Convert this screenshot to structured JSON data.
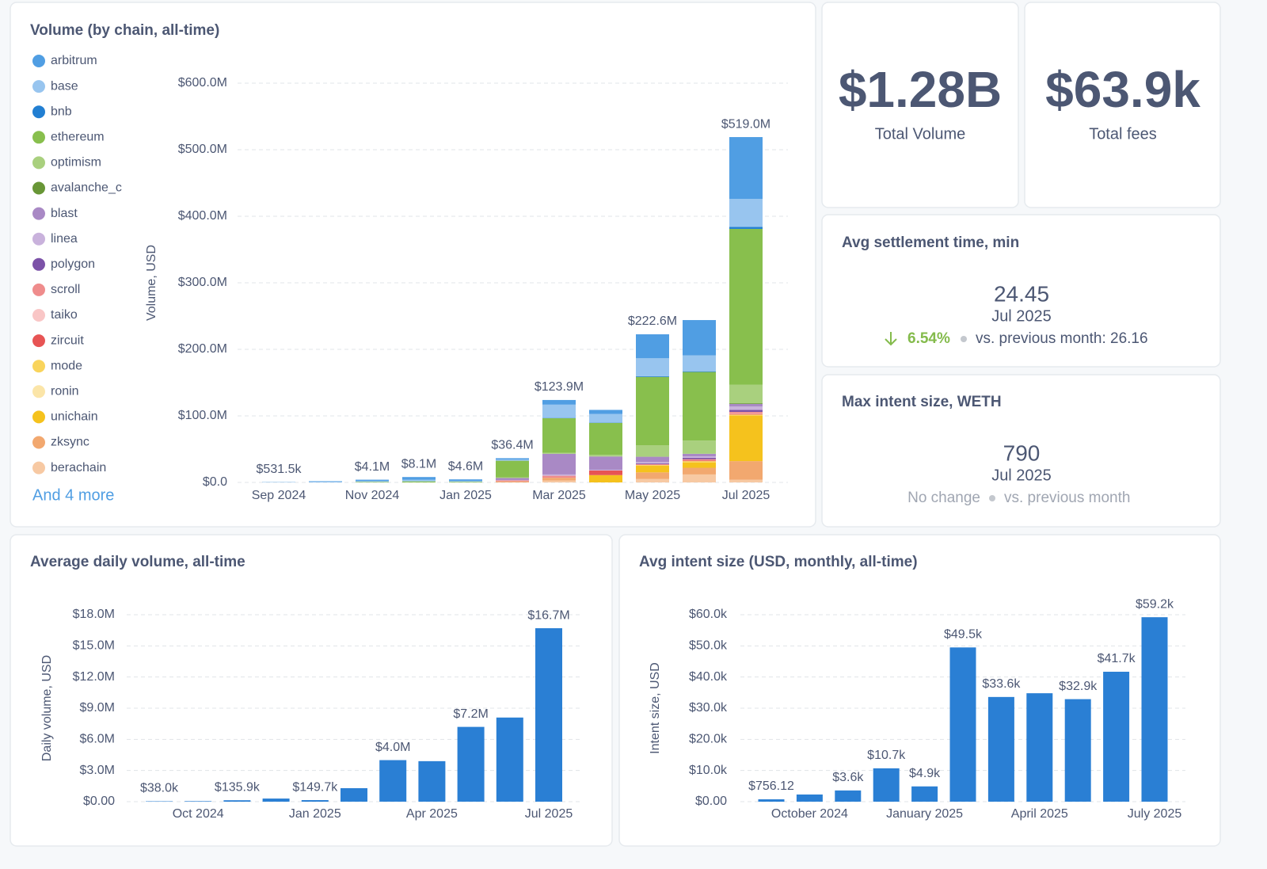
{
  "chart_data": [
    {
      "type": "stacked_bar",
      "title": "Volume (by chain, all-time)",
      "y_label": "Volume, USD",
      "categories": [
        "Sep 2024",
        null,
        "Nov 2024",
        null,
        "Jan 2025",
        null,
        "Mar 2025",
        null,
        "May 2025",
        null,
        "Jul 2025"
      ],
      "series": [
        {
          "name": "arbitrum",
          "color": "#509ee3",
          "values": [
            400000.0,
            1000000.0,
            2000000.0,
            4000000.0,
            2200000.0,
            2000000.0,
            7000000.0,
            6000000.0,
            36000000.0,
            53000000.0,
            93000000.0
          ]
        },
        {
          "name": "base",
          "color": "#98c5ef",
          "values": [
            131500.0,
            800000.0,
            1200000.0,
            2500000.0,
            1400000.0,
            1500000.0,
            20000000.0,
            13000000.0,
            27000000.0,
            24000000.0,
            42000000.0
          ]
        },
        {
          "name": "bnb",
          "color": "#227fd2",
          "values": [
            0,
            0,
            0,
            0,
            0,
            300000.0,
            400000.0,
            500000.0,
            1000000.0,
            1000000.0,
            3000000.0
          ]
        },
        {
          "name": "ethereum",
          "color": "#88bf4d",
          "values": [
            0,
            0,
            900000.0,
            1600000.0,
            1000000.0,
            25000000.0,
            52000000.0,
            48000000.0,
            103000000.0,
            103000000.0,
            234000000.0
          ]
        },
        {
          "name": "optimism",
          "color": "#a9d07e",
          "values": [
            0,
            0,
            0,
            0,
            0,
            1000000.0,
            1500000.0,
            2500000.0,
            17000000.0,
            20000000.0,
            28000000.0
          ]
        },
        {
          "name": "avalanche_c",
          "color": "#689636",
          "values": [
            0,
            0,
            0,
            0,
            0,
            0,
            0,
            0,
            0,
            0,
            1000000.0
          ]
        },
        {
          "name": "blast",
          "color": "#a989c5",
          "values": [
            0,
            0,
            0,
            0,
            0,
            3000000.0,
            31000000.0,
            20000000.0,
            8000000.0,
            4000000.0,
            4000000.0
          ]
        },
        {
          "name": "linea",
          "color": "#c9b2dc",
          "values": [
            0,
            0,
            0,
            0,
            0,
            500000.0,
            2000000.0,
            1000000.0,
            2000000.0,
            2000000.0,
            5000000.0
          ]
        },
        {
          "name": "polygon",
          "color": "#7c52a8",
          "values": [
            0,
            0,
            0,
            0,
            0,
            0,
            0,
            0,
            1000000.0,
            2000000.0,
            3000000.0
          ]
        },
        {
          "name": "scroll",
          "color": "#ef8c8c",
          "values": [
            0,
            0,
            0,
            0,
            0,
            1500000.0,
            3000000.0,
            0,
            1500000.0,
            2000000.0,
            2000000.0
          ]
        },
        {
          "name": "taiko",
          "color": "#f9c6c6",
          "values": [
            0,
            0,
            0,
            0,
            0,
            0,
            0,
            0,
            0,
            0,
            1000000.0
          ]
        },
        {
          "name": "zircuit",
          "color": "#e75454",
          "values": [
            0,
            0,
            0,
            0,
            0,
            0,
            0,
            7000000.0,
            0,
            1000000.0,
            1000000.0
          ]
        },
        {
          "name": "mode",
          "color": "#f9d45c",
          "values": [
            0,
            0,
            0,
            0,
            0,
            0,
            0,
            0,
            1000000.0,
            2000000.0,
            2000000.0
          ]
        },
        {
          "name": "ronin",
          "color": "#fbe5a8",
          "values": [
            0,
            0,
            0,
            0,
            0,
            0,
            0,
            0,
            0,
            0,
            0
          ]
        },
        {
          "name": "unichain",
          "color": "#f5c21d",
          "values": [
            0,
            0,
            0,
            0,
            0,
            0,
            0,
            11000000.0,
            10000000.0,
            8000000.0,
            68000000.0
          ]
        },
        {
          "name": "zksync",
          "color": "#f2a86f",
          "values": [
            0,
            0,
            0,
            0,
            0,
            1600000.0,
            4000000.0,
            0,
            10000000.0,
            10000000.0,
            28000000.0
          ]
        },
        {
          "name": "berachain",
          "color": "#f7c9a3",
          "values": [
            0,
            0,
            0,
            0,
            0,
            0,
            3000000.0,
            0,
            5100000.0,
            12000000.0,
            4000000.0
          ]
        }
      ],
      "legend_more": "And 4 more",
      "totals": [
        531500.0,
        null,
        4100000.0,
        8100000.0,
        4600000.0,
        36400000.0,
        123900000.0,
        null,
        222600000.0,
        null,
        519000000.0
      ],
      "total_labels": [
        "$531.5k",
        null,
        "$4.1M",
        "$8.1M",
        "$4.6M",
        "$36.4M",
        "$123.9M",
        null,
        "$222.6M",
        null,
        "$519.0M"
      ],
      "ylim": [
        0,
        600000000.0
      ],
      "yticks": [
        {
          "value": 0,
          "label": "$0.0"
        },
        {
          "value": 100000000.0,
          "label": "$100.0M"
        },
        {
          "value": 200000000.0,
          "label": "$200.0M"
        },
        {
          "value": 300000000.0,
          "label": "$300.0M"
        },
        {
          "value": 400000000.0,
          "label": "$400.0M"
        },
        {
          "value": 500000000.0,
          "label": "$500.0M"
        },
        {
          "value": 600000000.0,
          "label": "$600.0M"
        }
      ],
      "grid": true
    },
    {
      "type": "bar",
      "title": "Average daily volume, all-time",
      "y_label": "Daily volume, USD",
      "color": "#2a7fd4",
      "categories": [
        null,
        "Oct 2024",
        null,
        null,
        "Jan 2025",
        null,
        null,
        "Apr 2025",
        null,
        null,
        "Jul 2025"
      ],
      "values": [
        38000,
        50000,
        135900,
        300000,
        149700,
        1300000,
        4000000,
        3900000,
        7200000,
        8100000,
        16700000
      ],
      "value_labels": [
        "$38.0k",
        null,
        "$135.9k",
        null,
        "$149.7k",
        null,
        "$4.0M",
        null,
        "$7.2M",
        null,
        "$16.7M"
      ],
      "ylim": [
        0,
        18000000
      ],
      "yticks": [
        {
          "value": 0,
          "label": "$0.00"
        },
        {
          "value": 3000000,
          "label": "$3.0M"
        },
        {
          "value": 6000000,
          "label": "$6.0M"
        },
        {
          "value": 9000000,
          "label": "$9.0M"
        },
        {
          "value": 12000000,
          "label": "$12.0M"
        },
        {
          "value": 15000000,
          "label": "$15.0M"
        },
        {
          "value": 18000000,
          "label": "$18.0M"
        }
      ],
      "grid": true
    },
    {
      "type": "bar",
      "title": "Avg intent size (USD, monthly, all-time)",
      "y_label": "Intent size, USD",
      "color": "#2a7fd4",
      "categories": [
        null,
        "October 2024",
        null,
        null,
        "January 2025",
        null,
        null,
        "April 2025",
        null,
        null,
        "July 2025"
      ],
      "values": [
        756.12,
        2300,
        3600,
        10700,
        4900,
        49500,
        33600,
        34800,
        32900,
        41700,
        59200
      ],
      "value_labels": [
        "$756.12",
        null,
        "$3.6k",
        "$10.7k",
        "$4.9k",
        "$49.5k",
        "$33.6k",
        null,
        "$32.9k",
        "$41.7k",
        "$59.2k"
      ],
      "ylim": [
        0,
        60000
      ],
      "yticks": [
        {
          "value": 0,
          "label": "$0.00"
        },
        {
          "value": 10000,
          "label": "$10.0k"
        },
        {
          "value": 20000,
          "label": "$20.0k"
        },
        {
          "value": 30000,
          "label": "$30.0k"
        },
        {
          "value": 40000,
          "label": "$40.0k"
        },
        {
          "value": 50000,
          "label": "$50.0k"
        },
        {
          "value": 60000,
          "label": "$60.0k"
        }
      ],
      "grid": true
    }
  ],
  "cards": [
    {
      "value": "$1.28B",
      "label": "Total Volume"
    },
    {
      "value": "$63.9k",
      "label": "Total fees"
    }
  ],
  "trends": [
    {
      "title": "Avg settlement time, min",
      "value": "24.45",
      "period": "Jul 2025",
      "change": "6.54%",
      "comparison": "vs. previous month: 26.16"
    },
    {
      "title": "Max intent size, WETH",
      "value": "790",
      "period": "Jul 2025",
      "change": "No change",
      "comparison": "vs. previous month"
    }
  ]
}
